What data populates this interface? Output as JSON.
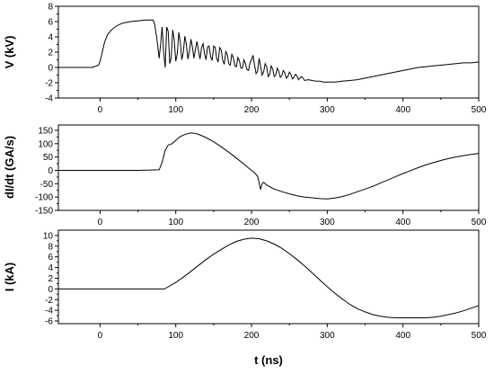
{
  "chart_data": [
    {
      "type": "line",
      "ylabel": "V (kV)",
      "xlim": [
        -55,
        500
      ],
      "ylim": [
        -4,
        8
      ],
      "xticks": [
        0,
        100,
        200,
        300,
        400,
        500
      ],
      "yticks": [
        -4,
        -2,
        0,
        2,
        4,
        6,
        8
      ],
      "xtick_labels": [
        "0",
        "100",
        "200",
        "300",
        "400",
        "500"
      ],
      "ytick_labels": [
        "-4",
        "-2",
        "0",
        "2",
        "4",
        "6",
        "8"
      ],
      "grid": false,
      "series": [
        {
          "x": [
            -55,
            -10,
            -2,
            0,
            3,
            6,
            10,
            15,
            20,
            25,
            30,
            40,
            50,
            60,
            68,
            70,
            72,
            75,
            78,
            80,
            82,
            84,
            86,
            88,
            90,
            92,
            94,
            96,
            98,
            100,
            102,
            104,
            106,
            108,
            110,
            112,
            114,
            116,
            118,
            120,
            122,
            124,
            126,
            128,
            130,
            132,
            134,
            136,
            138,
            140,
            142,
            144,
            146,
            148,
            150,
            152,
            154,
            156,
            158,
            160,
            162,
            164,
            166,
            168,
            170,
            172,
            174,
            176,
            178,
            180,
            182,
            184,
            186,
            188,
            190,
            192,
            194,
            196,
            198,
            200,
            202,
            204,
            206,
            208,
            210,
            212,
            214,
            216,
            218,
            220,
            222,
            224,
            226,
            228,
            230,
            232,
            234,
            236,
            238,
            240,
            242,
            244,
            246,
            248,
            250,
            252,
            254,
            256,
            258,
            260,
            262,
            264,
            266,
            268,
            270,
            275,
            280,
            285,
            290,
            295,
            300,
            310,
            320,
            330,
            340,
            350,
            360,
            370,
            380,
            390,
            400,
            410,
            420,
            430,
            440,
            450,
            460,
            470,
            480,
            490,
            500
          ],
          "y": [
            0,
            0,
            0.3,
            0.8,
            2.0,
            3.3,
            4.3,
            4.9,
            5.3,
            5.6,
            5.8,
            6.0,
            6.1,
            6.2,
            6.2,
            6.2,
            5.7,
            3.8,
            1.2,
            3.0,
            5.3,
            2.0,
            0.0,
            5.3,
            4.7,
            0.5,
            1.3,
            4.9,
            3.6,
            0.8,
            1.8,
            4.6,
            3.3,
            1.0,
            2.0,
            4.1,
            3.0,
            1.1,
            2.1,
            3.7,
            2.6,
            1.2,
            2.4,
            3.4,
            2.2,
            1.1,
            2.6,
            3.1,
            1.8,
            1.0,
            2.7,
            2.8,
            1.4,
            0.9,
            2.8,
            2.6,
            1.2,
            0.7,
            2.6,
            2.3,
            0.9,
            0.4,
            2.1,
            1.7,
            0.5,
            0.3,
            1.7,
            1.3,
            0.2,
            0.1,
            1.3,
            0.9,
            -0.1,
            -0.1,
            1.0,
            0.5,
            -0.3,
            -0.4,
            0.6,
            1.0,
            1.6,
            0.3,
            -0.8,
            -0.5,
            1.2,
            0.2,
            -1.0,
            -0.6,
            0.5,
            0.1,
            -1.2,
            -0.9,
            0.2,
            -0.2,
            -1.2,
            -1.0,
            -0.1,
            -0.5,
            -1.3,
            -1.1,
            -0.4,
            -0.7,
            -1.4,
            -1.2,
            -0.6,
            -0.9,
            -1.5,
            -1.3,
            -0.9,
            -1.1,
            -1.6,
            -1.4,
            -1.2,
            -1.4,
            -1.7,
            -1.6,
            -1.7,
            -1.8,
            -1.8,
            -1.9,
            -1.9,
            -1.9,
            -1.8,
            -1.7,
            -1.6,
            -1.4,
            -1.2,
            -1.0,
            -0.8,
            -0.6,
            -0.4,
            -0.2,
            0.0,
            0.1,
            0.2,
            0.3,
            0.4,
            0.5,
            0.6,
            0.6,
            0.7
          ]
        }
      ]
    },
    {
      "type": "line",
      "ylabel": "dI/dt (GA/s)",
      "xlim": [
        -55,
        500
      ],
      "ylim": [
        -150,
        170
      ],
      "xticks": [
        0,
        100,
        200,
        300,
        400,
        500
      ],
      "yticks": [
        -150,
        -100,
        -50,
        0,
        50,
        100,
        150
      ],
      "xtick_labels": [
        "0",
        "100",
        "200",
        "300",
        "400",
        "500"
      ],
      "ytick_labels": [
        "-150",
        "-100",
        "-50",
        "0",
        "50",
        "100",
        "150"
      ],
      "grid": false,
      "series": [
        {
          "x": [
            -55,
            0,
            50,
            78,
            82,
            86,
            90,
            95,
            100,
            105,
            110,
            115,
            120,
            125,
            130,
            140,
            150,
            160,
            170,
            180,
            190,
            200,
            205,
            208,
            210,
            212,
            214,
            216,
            220,
            230,
            240,
            250,
            260,
            270,
            280,
            290,
            300,
            310,
            320,
            330,
            340,
            350,
            360,
            370,
            380,
            390,
            400,
            410,
            420,
            430,
            440,
            450,
            460,
            470,
            480,
            490,
            500
          ],
          "y": [
            0,
            0,
            0,
            2,
            30,
            75,
            95,
            100,
            112,
            125,
            132,
            137,
            140,
            139,
            135,
            123,
            107,
            88,
            68,
            46,
            23,
            0,
            -12,
            -22,
            -48,
            -72,
            -50,
            -45,
            -55,
            -70,
            -80,
            -88,
            -95,
            -100,
            -103,
            -106,
            -107,
            -104,
            -98,
            -90,
            -80,
            -70,
            -60,
            -48,
            -36,
            -24,
            -12,
            -1,
            10,
            20,
            29,
            37,
            44,
            50,
            55,
            60,
            63
          ]
        }
      ]
    },
    {
      "type": "line",
      "ylabel": "I (kA)",
      "xlabel": "t (ns)",
      "xlim": [
        -55,
        500
      ],
      "ylim": [
        -6.5,
        11
      ],
      "xticks": [
        0,
        100,
        200,
        300,
        400,
        500
      ],
      "yticks": [
        -6,
        -4,
        -2,
        0,
        2,
        4,
        6,
        8,
        10
      ],
      "xtick_labels": [
        "0",
        "100",
        "200",
        "300",
        "400",
        "500"
      ],
      "ytick_labels": [
        "-6",
        "-4",
        "-2",
        "0",
        "2",
        "4",
        "6",
        "8",
        "10"
      ],
      "grid": false,
      "series": [
        {
          "x": [
            -55,
            0,
            50,
            85,
            90,
            100,
            110,
            120,
            130,
            140,
            150,
            160,
            170,
            180,
            190,
            200,
            210,
            220,
            230,
            240,
            250,
            260,
            270,
            280,
            290,
            300,
            310,
            320,
            330,
            340,
            350,
            360,
            370,
            380,
            390,
            400,
            410,
            420,
            430,
            440,
            450,
            460,
            470,
            480,
            490,
            500
          ],
          "y": [
            0,
            0,
            0,
            0,
            0.4,
            1.2,
            2.2,
            3.3,
            4.4,
            5.5,
            6.5,
            7.4,
            8.2,
            8.9,
            9.3,
            9.5,
            9.4,
            9.0,
            8.4,
            7.6,
            6.6,
            5.5,
            4.3,
            3.0,
            1.7,
            0.4,
            -0.8,
            -1.9,
            -2.9,
            -3.7,
            -4.3,
            -4.8,
            -5.1,
            -5.3,
            -5.4,
            -5.4,
            -5.4,
            -5.4,
            -5.4,
            -5.3,
            -5.1,
            -4.8,
            -4.5,
            -4.1,
            -3.6,
            -3.1
          ]
        }
      ]
    }
  ]
}
